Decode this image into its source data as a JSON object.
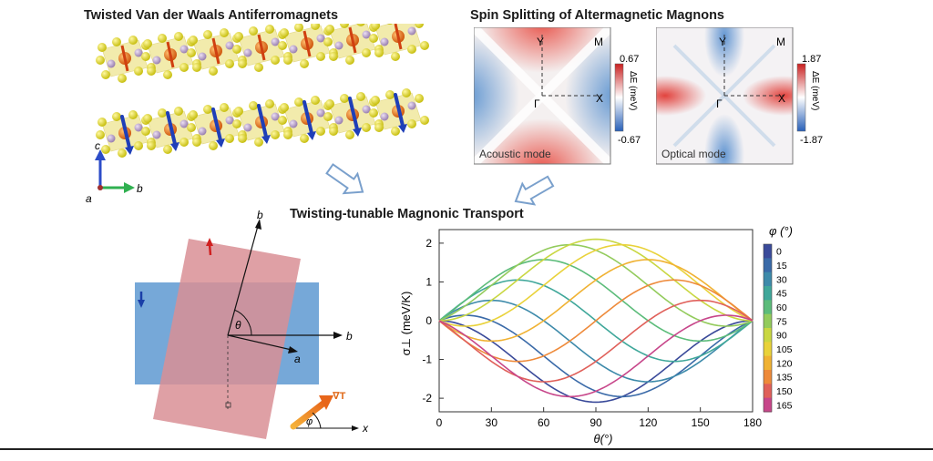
{
  "titles": {
    "crystal": "Twisted Van der Waals Antiferromagnets",
    "splitting": "Spin Splitting of Altermagnetic Magnons",
    "transport": "Twisting-tunable Magnonic Transport"
  },
  "crystal": {
    "axis_c": "c",
    "axis_a": "a",
    "axis_b": "b"
  },
  "maps": [
    {
      "mode_label": "Acoustic mode",
      "cb_max": "0.67",
      "cb_min": "-0.67",
      "cb_label": "ΔE (meV)",
      "pt_y": "Y",
      "pt_m": "M",
      "pt_g": "Γ",
      "pt_x": "X"
    },
    {
      "mode_label": "Optical mode",
      "cb_max": "1.87",
      "cb_min": "-1.87",
      "cb_label": "ΔE (meV)",
      "pt_y": "Y",
      "pt_m": "M",
      "pt_g": "Γ",
      "pt_x": "X"
    }
  ],
  "geometry": {
    "axis_b": "b",
    "axis_a": "a",
    "axis_x": "x",
    "theta": "θ",
    "phi": "φ",
    "grad_t": "∇T",
    "colors": {
      "red_layer": "#d98f95",
      "blue_layer": "#6fa3d6"
    }
  },
  "chart_data": {
    "type": "line",
    "xlabel": "θ(°)",
    "ylabel": "σ⊥ (meV/K)",
    "xlim": [
      0,
      180
    ],
    "ylim": [
      -2.35,
      2.35
    ],
    "xticks": [
      "0",
      "30",
      "60",
      "90",
      "120",
      "150",
      "180"
    ],
    "yticks": [
      "-2",
      "-1",
      "0",
      "1",
      "2"
    ],
    "legend_title": "φ (°)",
    "legend_position": "right",
    "amplitude": 2.1,
    "series": [
      {
        "name": "0",
        "color": "#3a4a9a"
      },
      {
        "name": "15",
        "color": "#3a6aa8"
      },
      {
        "name": "30",
        "color": "#3d8aaa"
      },
      {
        "name": "45",
        "color": "#3fa79a"
      },
      {
        "name": "60",
        "color": "#5cbc7a"
      },
      {
        "name": "75",
        "color": "#93cb5c"
      },
      {
        "name": "90",
        "color": "#c9d742"
      },
      {
        "name": "105",
        "color": "#e9d23a"
      },
      {
        "name": "120",
        "color": "#f0b233"
      },
      {
        "name": "135",
        "color": "#ee8a3a"
      },
      {
        "name": "150",
        "color": "#e0605a"
      },
      {
        "name": "165",
        "color": "#c7468a"
      }
    ]
  }
}
